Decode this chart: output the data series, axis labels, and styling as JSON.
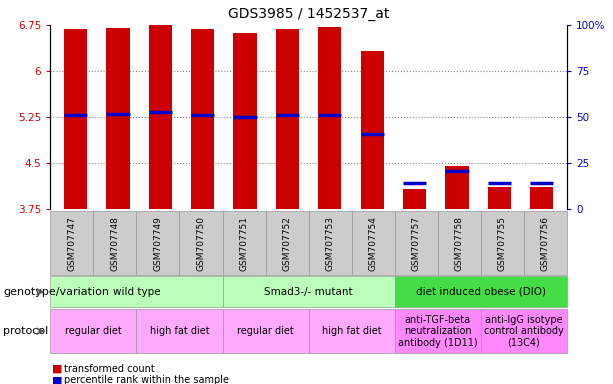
{
  "title": "GDS3985 / 1452537_at",
  "samples": [
    "GSM707747",
    "GSM707748",
    "GSM707749",
    "GSM707750",
    "GSM707751",
    "GSM707752",
    "GSM707753",
    "GSM707754",
    "GSM707757",
    "GSM707758",
    "GSM707755",
    "GSM707756"
  ],
  "bar_tops": [
    6.68,
    6.7,
    6.75,
    6.68,
    6.62,
    6.68,
    6.72,
    6.32,
    4.08,
    4.45,
    4.12,
    4.12
  ],
  "bar_bottom": 3.75,
  "percentile_values": [
    5.28,
    5.3,
    5.33,
    5.28,
    5.25,
    5.28,
    5.28,
    4.97,
    4.18,
    4.38,
    4.18,
    4.18
  ],
  "ylim_left": [
    3.75,
    6.75
  ],
  "ylim_right": [
    0,
    100
  ],
  "yticks_left": [
    3.75,
    4.5,
    5.25,
    6.0,
    6.75
  ],
  "ytick_labels_left": [
    "3.75",
    "4.5",
    "5.25",
    "6",
    "6.75"
  ],
  "yticks_right": [
    0,
    25,
    50,
    75,
    100
  ],
  "ytick_labels_right": [
    "0",
    "25",
    "50",
    "75",
    "100%"
  ],
  "bar_color": "#cc0000",
  "percentile_color": "#0000cc",
  "grid_yticks": [
    4.5,
    5.25,
    6.0
  ],
  "genotype_groups": [
    {
      "label": "wild type",
      "start": 0,
      "end": 3,
      "color": "#bbffbb"
    },
    {
      "label": "Smad3-/- mutant",
      "start": 4,
      "end": 7,
      "color": "#bbffbb"
    },
    {
      "label": "diet induced obese (DIO)",
      "start": 8,
      "end": 11,
      "color": "#44dd44"
    }
  ],
  "protocol_groups": [
    {
      "label": "regular diet",
      "start": 0,
      "end": 1,
      "color": "#ffaaff"
    },
    {
      "label": "high fat diet",
      "start": 2,
      "end": 3,
      "color": "#ffaaff"
    },
    {
      "label": "regular diet",
      "start": 4,
      "end": 5,
      "color": "#ffaaff"
    },
    {
      "label": "high fat diet",
      "start": 6,
      "end": 7,
      "color": "#ffaaff"
    },
    {
      "label": "anti-TGF-beta\nneutralization\nantibody (1D11)",
      "start": 8,
      "end": 9,
      "color": "#ff88ff"
    },
    {
      "label": "anti-IgG isotype\ncontrol antibody\n(13C4)",
      "start": 10,
      "end": 11,
      "color": "#ff88ff"
    }
  ],
  "genotype_label": "genotype/variation",
  "protocol_label": "protocol",
  "legend_items": [
    {
      "label": "transformed count",
      "color": "#cc0000"
    },
    {
      "label": "percentile rank within the sample",
      "color": "#0000cc"
    }
  ],
  "title_fontsize": 10,
  "axis_fontsize": 7.5,
  "table_fontsize": 7.5,
  "label_fontsize": 8,
  "sample_fontsize": 6.5,
  "tick_bg_color": "#cccccc",
  "tick_border_color": "#999999"
}
